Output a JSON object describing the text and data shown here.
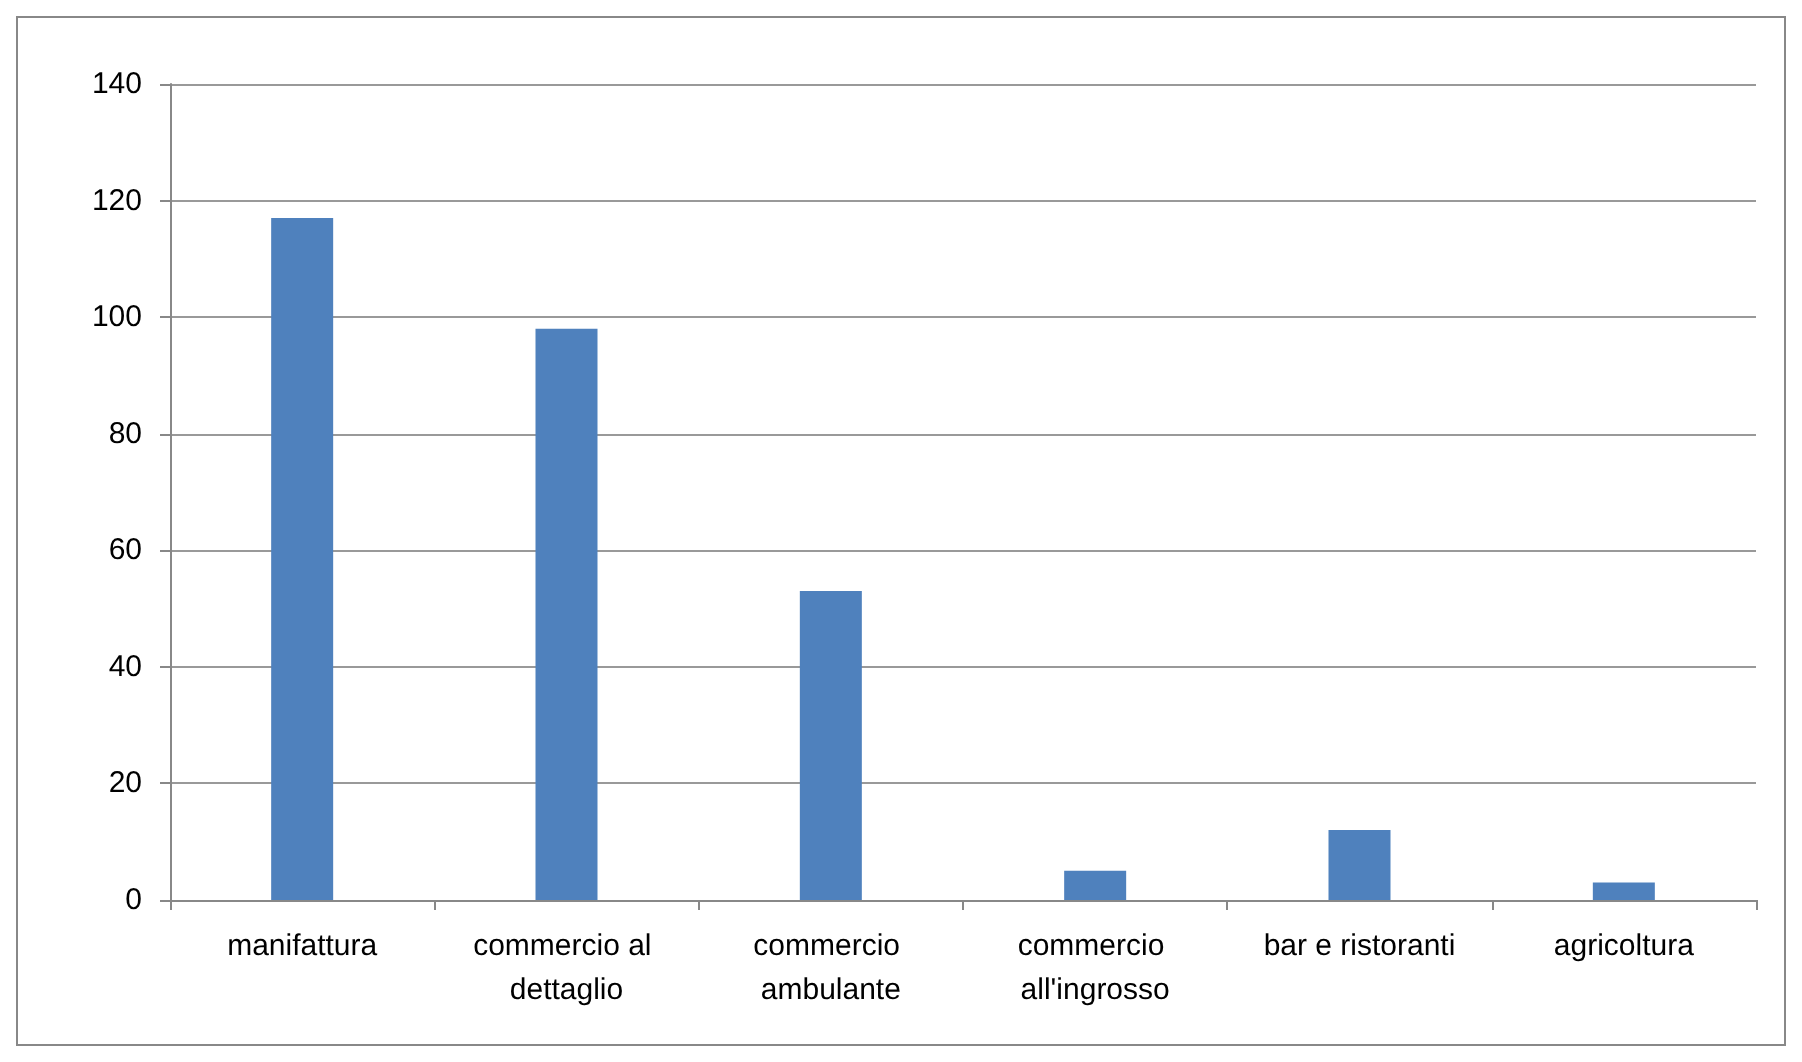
{
  "chart_data": {
    "type": "bar",
    "categories": [
      "manifattura",
      "commercio al dettaglio",
      "commercio ambulante",
      "commercio all'ingrosso",
      "bar e ristoranti",
      "agricoltura"
    ],
    "values": [
      117,
      98,
      53,
      5,
      12,
      3
    ],
    "color": "#4f81bd",
    "ylim": [
      0,
      140
    ],
    "yticks": [
      0,
      20,
      40,
      60,
      80,
      100,
      120,
      140
    ],
    "grid": "y"
  }
}
